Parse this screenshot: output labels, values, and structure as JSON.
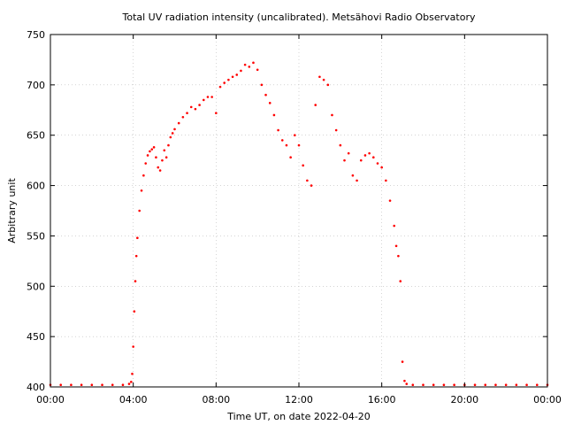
{
  "chart_data": {
    "type": "scatter",
    "title": "Total UV radiation intensity (uncalibrated). Metsähovi Radio Observatory",
    "xlabel": "Time UT, on date 2022-04-20",
    "ylabel": "Arbitrary unit",
    "xlim": [
      0,
      24
    ],
    "ylim": [
      400,
      750
    ],
    "x_unit": "hours UT",
    "x_ticks": [
      0,
      4,
      8,
      12,
      16,
      20,
      24
    ],
    "x_tick_labels": [
      "00:00",
      "04:00",
      "08:00",
      "12:00",
      "16:00",
      "20:00",
      "00:00"
    ],
    "y_ticks": [
      400,
      450,
      500,
      550,
      600,
      650,
      700,
      750
    ],
    "y_tick_labels": [
      "400",
      "450",
      "500",
      "550",
      "600",
      "650",
      "700",
      "750"
    ],
    "grid": true,
    "legend": "none",
    "color": "#ff0000",
    "series": [
      {
        "x": [
          0.0,
          0.5,
          1.0,
          1.5,
          2.0,
          2.5,
          3.0,
          3.5,
          3.8,
          3.9,
          3.95,
          4.0,
          4.05,
          4.1,
          4.15,
          4.2,
          4.3,
          4.4,
          4.5,
          4.6,
          4.7,
          4.8,
          4.9,
          5.0,
          5.1,
          5.2,
          5.3,
          5.4,
          5.5,
          5.6,
          5.7,
          5.8,
          5.9,
          6.0,
          6.2,
          6.4,
          6.6,
          6.8,
          7.0,
          7.2,
          7.4,
          7.6,
          7.8,
          8.0,
          8.2,
          8.4,
          8.6,
          8.8,
          9.0,
          9.2,
          9.4,
          9.6,
          9.8,
          10.0,
          10.2,
          10.4,
          10.6,
          10.8,
          11.0,
          11.2,
          11.4,
          11.6,
          11.8,
          12.0,
          12.2,
          12.4,
          12.6,
          12.8,
          13.0,
          13.2,
          13.4,
          13.6,
          13.8,
          14.0,
          14.2,
          14.4,
          14.6,
          14.8,
          15.0,
          15.2,
          15.4,
          15.6,
          15.8,
          16.0,
          16.2,
          16.4,
          16.6,
          16.7,
          16.8,
          16.9,
          17.0,
          17.1,
          17.2,
          17.5,
          18.0,
          18.5,
          19.0,
          19.5,
          20.0,
          20.5,
          21.0,
          21.5,
          22.0,
          22.5,
          23.0,
          23.5,
          24.0
        ],
        "y": [
          402,
          402,
          402,
          402,
          402,
          402,
          402,
          402,
          403,
          405,
          413,
          440,
          475,
          505,
          530,
          548,
          575,
          595,
          610,
          622,
          630,
          634,
          636,
          638,
          628,
          618,
          615,
          625,
          635,
          628,
          640,
          648,
          652,
          656,
          662,
          668,
          672,
          678,
          676,
          680,
          685,
          688,
          688,
          672,
          698,
          702,
          705,
          708,
          710,
          714,
          720,
          718,
          722,
          715,
          700,
          690,
          682,
          670,
          655,
          645,
          640,
          628,
          650,
          640,
          620,
          605,
          600,
          680,
          708,
          705,
          700,
          670,
          655,
          640,
          625,
          632,
          610,
          605,
          625,
          630,
          632,
          628,
          622,
          618,
          605,
          585,
          560,
          540,
          530,
          505,
          425,
          406,
          403,
          402,
          402,
          402,
          402,
          402,
          402,
          402,
          402,
          402,
          402,
          402,
          402,
          402,
          402
        ]
      }
    ]
  }
}
